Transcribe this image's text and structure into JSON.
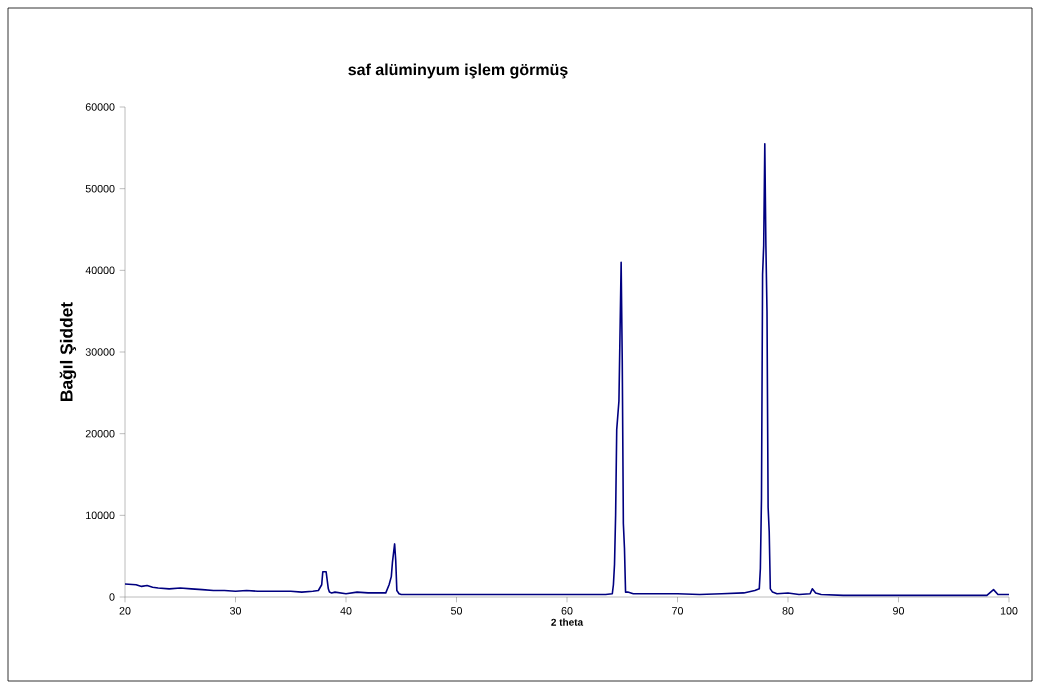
{
  "chart_data": {
    "type": "line",
    "title": "saf alüminyum işlem görmüş",
    "xlabel": "2 theta",
    "ylabel": "Bağıl Şiddet",
    "x": [
      20,
      21,
      21.5,
      22,
      22.5,
      23,
      24,
      25,
      26,
      27,
      28,
      29,
      30,
      31,
      32,
      33,
      34,
      35,
      36,
      37,
      37.5,
      37.8,
      37.9,
      38.2,
      38.4,
      38.5,
      38.7,
      39,
      40,
      41,
      42,
      43,
      43.6,
      43.9,
      44.1,
      44.2,
      44.4,
      44.5,
      44.6,
      44.8,
      45,
      46,
      48,
      50,
      52,
      54,
      56,
      58,
      60,
      62,
      63.5,
      64.1,
      64.2,
      64.3,
      64.4,
      64.5,
      64.7,
      64.9,
      65.0,
      65.1,
      65.2,
      65.3,
      65.5,
      66,
      68,
      70,
      72,
      74,
      76,
      77,
      77.4,
      77.5,
      77.6,
      77.7,
      77.8,
      77.9,
      78.0,
      78.1,
      78.2,
      78.3,
      78.4,
      78.6,
      79,
      80,
      81,
      82,
      82.2,
      82.5,
      83,
      85,
      88,
      90,
      92,
      95,
      98,
      98.6,
      99,
      100
    ],
    "values": [
      1600,
      1500,
      1300,
      1400,
      1200,
      1100,
      1000,
      1100,
      1000,
      900,
      800,
      800,
      700,
      800,
      700,
      700,
      700,
      700,
      600,
      700,
      800,
      1500,
      3100,
      3100,
      1000,
      600,
      500,
      600,
      400,
      600,
      500,
      500,
      500,
      1500,
      2500,
      4200,
      6500,
      4500,
      800,
      400,
      300,
      300,
      300,
      300,
      300,
      300,
      300,
      300,
      300,
      300,
      300,
      400,
      1500,
      4000,
      10000,
      20500,
      24000,
      41000,
      29000,
      9000,
      6000,
      600,
      600,
      400,
      400,
      400,
      300,
      400,
      500,
      800,
      1000,
      3500,
      12000,
      39500,
      43000,
      55500,
      43000,
      35000,
      11000,
      8000,
      1000,
      600,
      400,
      500,
      300,
      400,
      1000,
      500,
      300,
      200,
      200,
      200,
      200,
      200,
      200,
      900,
      300,
      300
    ],
    "color": "#000080",
    "xlim": [
      20,
      100
    ],
    "ylim": [
      0,
      60000
    ],
    "xticks": [
      20,
      30,
      40,
      50,
      60,
      70,
      80,
      90,
      100
    ],
    "yticks": [
      0,
      10000,
      20000,
      30000,
      40000,
      50000,
      60000
    ],
    "grid": false,
    "marker": "none",
    "line_style": "solid"
  }
}
